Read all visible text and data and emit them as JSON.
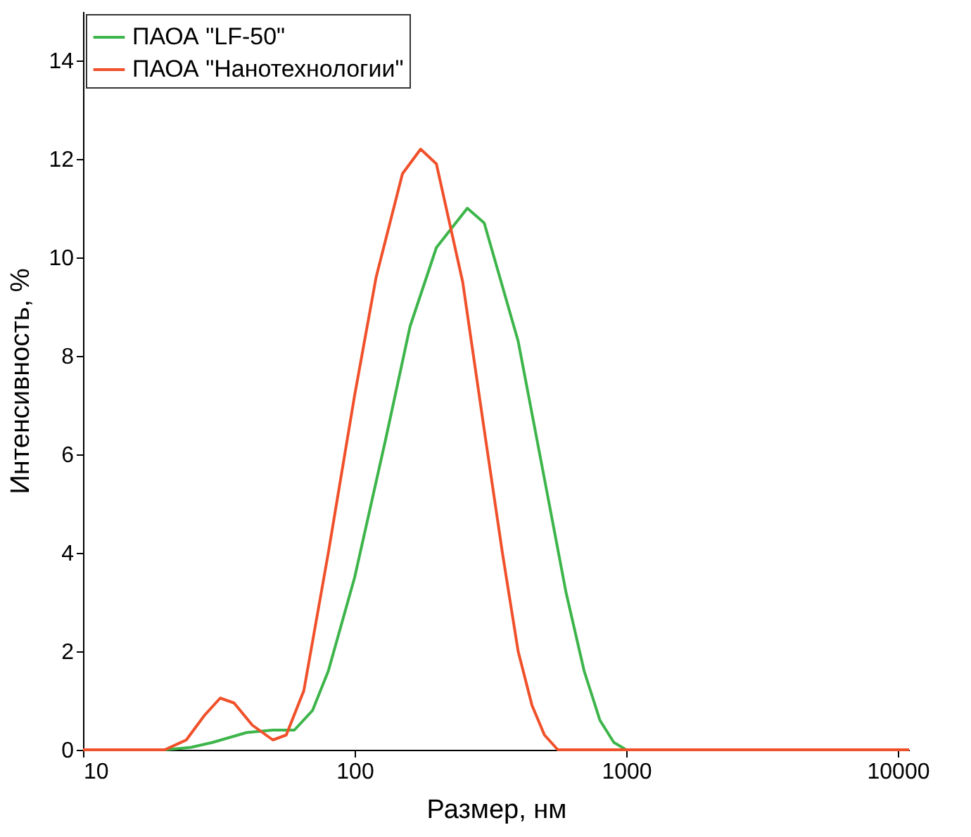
{
  "chart_data": {
    "type": "line",
    "xlabel": "Размер, нм",
    "ylabel": "Интенсивность, %",
    "log": "x",
    "xlim": [
      10,
      11000
    ],
    "xticks": [
      10,
      100,
      {
        "value": 1000,
        "label": "1000"
      },
      {
        "value": 10000,
        "label": "10000"
      }
    ],
    "ylim": [
      0,
      15
    ],
    "yticks": [
      0,
      2,
      4,
      6,
      8,
      10,
      12,
      14
    ],
    "grid": false,
    "legend": "top left",
    "marker": "none",
    "line_style": "solid",
    "series": [
      {
        "name": "ПАОА \"LF-50\"",
        "color": "#3db54a",
        "x": [
          10,
          20,
          25,
          30,
          40,
          50,
          60,
          70,
          80,
          100,
          130,
          160,
          200,
          260,
          300,
          400,
          500,
          600,
          700,
          800,
          900,
          1000,
          11000
        ],
        "values": [
          0,
          0,
          0.05,
          0.15,
          0.35,
          0.4,
          0.4,
          0.8,
          1.6,
          3.5,
          6.3,
          8.6,
          10.2,
          11.0,
          10.7,
          8.3,
          5.5,
          3.2,
          1.6,
          0.6,
          0.15,
          0,
          0
        ]
      },
      {
        "name": "ПАОА \"Нанотехнологии\"",
        "color": "#f0502a",
        "x": [
          10,
          20,
          24,
          28,
          32,
          36,
          42,
          50,
          56,
          65,
          80,
          100,
          120,
          150,
          175,
          200,
          250,
          300,
          350,
          400,
          450,
          500,
          560,
          11000
        ],
        "values": [
          0,
          0,
          0.2,
          0.7,
          1.05,
          0.95,
          0.5,
          0.2,
          0.3,
          1.2,
          4,
          7.2,
          9.6,
          11.7,
          12.2,
          11.9,
          9.5,
          6.5,
          4,
          2,
          0.9,
          0.3,
          0,
          0
        ]
      }
    ]
  }
}
